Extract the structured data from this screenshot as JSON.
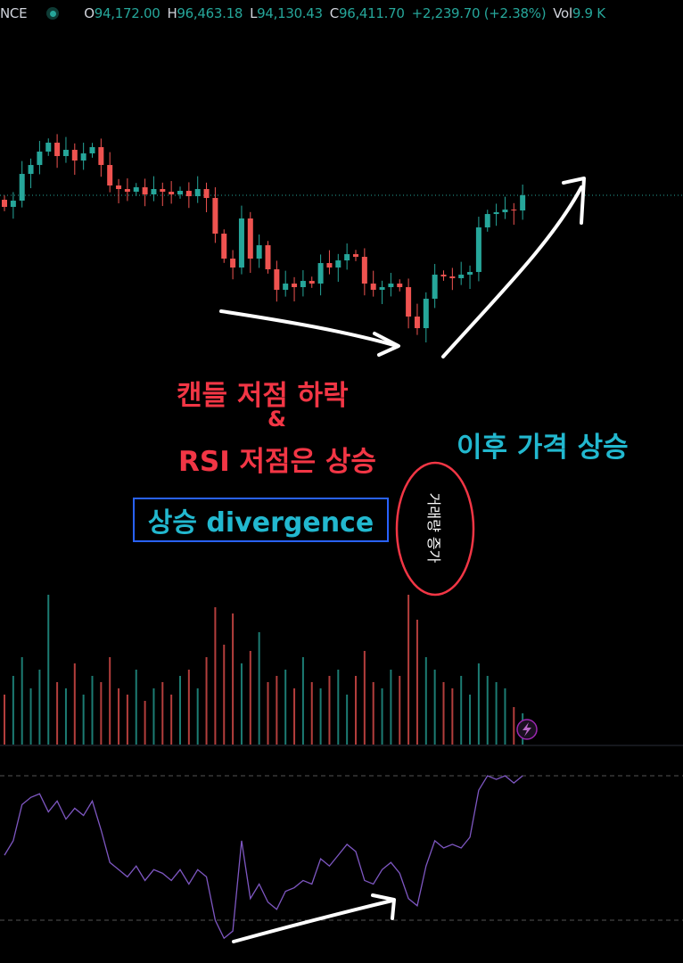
{
  "header": {
    "symbol_fragment": "NCE",
    "open_label": "O",
    "open": "94,172.00",
    "high_label": "H",
    "high": "96,463.18",
    "low_label": "L",
    "low": "94,130.43",
    "close_label": "C",
    "close": "96,411.70",
    "change": "+2,239.70 (+2.38%)",
    "vol_label": "Vol",
    "vol": "9.9 K"
  },
  "annotations": {
    "red_line1": "캔들 저점 하락",
    "red_line2": "&",
    "red_line3": "RSI 저점은 상승",
    "box_text": "상승 divergence",
    "volume_note": "거래량 증가",
    "after_text": "이후 가격 상승"
  },
  "colors": {
    "up": "#26a69a",
    "down": "#ef5350",
    "rsi": "#7e57c2",
    "annotation_red": "#f23645",
    "annotation_cyan": "#22b8cf",
    "box": "#2962ff"
  },
  "icons": {
    "lightning": "lightning-icon"
  },
  "chart_data": {
    "type": "candlestick",
    "last_price": 96411.7,
    "closes": [
      96086,
      96261,
      97011,
      97261,
      97636,
      97886,
      97511,
      97686,
      97386,
      97586,
      97761,
      97261,
      96686,
      96586,
      96511,
      96636,
      96436,
      96586,
      96511,
      96436,
      96536,
      96386,
      96586,
      96336,
      95336,
      94636,
      94386,
      95761,
      94636,
      95011,
      94336,
      93761,
      93936,
      93836,
      94011,
      93936,
      94511,
      94386,
      94586,
      94761,
      94686,
      93936,
      93761,
      93836,
      93936,
      93836,
      93011,
      92686,
      93511,
      94186,
      94136,
      94086,
      94186,
      94261,
      95511,
      95886,
      95936,
      96011,
      95986,
      96411.7
    ],
    "volume": [
      40,
      55,
      70,
      45,
      60,
      120,
      50,
      45,
      65,
      40,
      55,
      50,
      70,
      45,
      40,
      60,
      35,
      45,
      50,
      40,
      55,
      60,
      45,
      70,
      110,
      80,
      105,
      65,
      75,
      90,
      50,
      55,
      60,
      45,
      70,
      50,
      45,
      55,
      60,
      40,
      55,
      75,
      50,
      45,
      60,
      55,
      120,
      100,
      70,
      60,
      50,
      45,
      55,
      40,
      65,
      55,
      50,
      45,
      30,
      25
    ],
    "rsi": [
      48,
      52,
      62,
      64,
      65,
      60,
      63,
      58,
      61,
      59,
      63,
      55,
      46,
      44,
      42,
      45,
      41,
      44,
      43,
      41,
      44,
      40,
      44,
      42,
      30,
      25,
      27,
      52,
      36,
      40,
      35,
      33,
      38,
      39,
      41,
      40,
      47,
      45,
      48,
      51,
      49,
      41,
      40,
      44,
      46,
      43,
      36,
      34,
      45,
      52,
      50,
      51,
      50,
      53,
      66,
      70,
      69,
      70,
      68,
      70
    ],
    "rsi_levels": [
      70,
      30
    ]
  }
}
